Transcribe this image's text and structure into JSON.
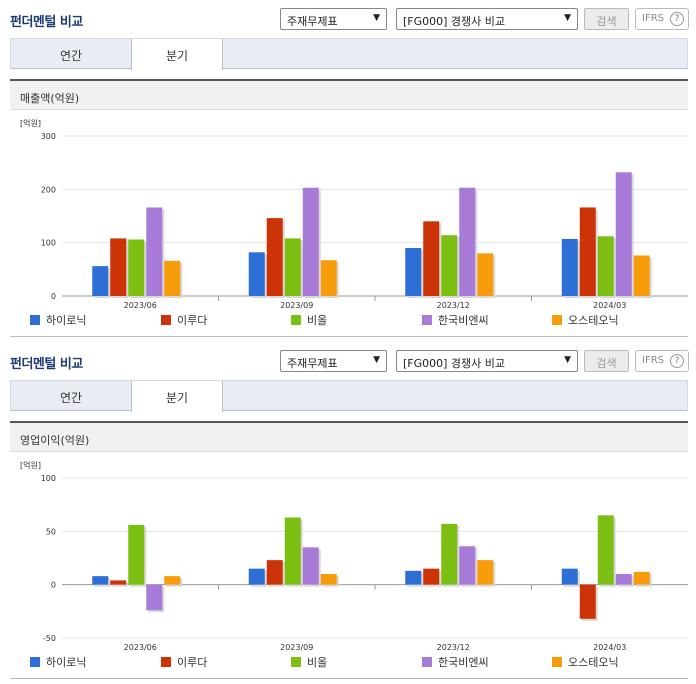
{
  "header": {
    "title": "펀더멘털 비교",
    "select1": "주재무제표",
    "select2": "[FG000] 경쟁사 비교",
    "search_label": "검색",
    "ifrs_label": "IFRS",
    "help_glyph": "?"
  },
  "tabs": [
    "연간",
    "분기"
  ],
  "unit_label": "[억원]",
  "colors": {
    "하이로닉": "#2e6fd6",
    "이루다": "#cc3306",
    "비올": "#7cbf12",
    "한국비엔씨": "#a87bd8",
    "오스테오닉": "#f79d0c"
  },
  "legend": [
    "하이로닉",
    "이루다",
    "비올",
    "한국비엔씨",
    "오스테오닉"
  ],
  "sections": [
    {
      "subtitle": "매출액(억원)",
      "chart_data": {
        "type": "bar",
        "title": "매출액(억원)",
        "ylabel": "[억원]",
        "ylim": [
          0,
          300
        ],
        "yticks": [
          0,
          100,
          200,
          300
        ],
        "grid": true,
        "legend_position": "bottom",
        "categories": [
          "2023/06",
          "2023/09",
          "2023/12",
          "2024/03"
        ],
        "series": [
          {
            "name": "하이로닉",
            "values": [
              56,
              82,
              90,
              107
            ]
          },
          {
            "name": "이루다",
            "values": [
              108,
              146,
              140,
              166
            ]
          },
          {
            "name": "비올",
            "values": [
              106,
              108,
              114,
              112
            ]
          },
          {
            "name": "한국비엔씨",
            "values": [
              166,
              203,
              203,
              232
            ]
          },
          {
            "name": "오스테오닉",
            "values": [
              66,
              67,
              80,
              76
            ]
          }
        ]
      }
    },
    {
      "subtitle": "영업이익(억원)",
      "chart_data": {
        "type": "bar",
        "title": "영업이익(억원)",
        "ylabel": "[억원]",
        "ylim": [
          -50,
          100
        ],
        "yticks": [
          -50,
          0,
          50,
          100
        ],
        "grid": true,
        "legend_position": "bottom",
        "categories": [
          "2023/06",
          "2023/09",
          "2023/12",
          "2024/03"
        ],
        "series": [
          {
            "name": "하이로닉",
            "values": [
              8,
              15,
              13,
              15
            ]
          },
          {
            "name": "이루다",
            "values": [
              4,
              23,
              15,
              -32
            ]
          },
          {
            "name": "비올",
            "values": [
              56,
              63,
              57,
              65
            ]
          },
          {
            "name": "한국비엔씨",
            "values": [
              -24,
              35,
              36,
              10
            ]
          },
          {
            "name": "오스테오닉",
            "values": [
              8,
              10,
              23,
              12
            ]
          }
        ]
      }
    }
  ]
}
